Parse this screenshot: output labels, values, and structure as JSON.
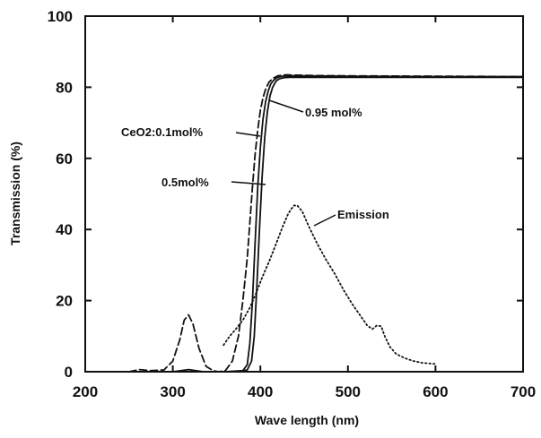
{
  "chart_data": {
    "type": "line",
    "title": "",
    "xlabel": "Wave length (nm)",
    "ylabel": "Transmission (%)",
    "xlim": [
      200,
      700
    ],
    "ylim": [
      0,
      100
    ],
    "xticks": [
      200,
      300,
      400,
      500,
      600,
      700
    ],
    "yticks": [
      0,
      20,
      40,
      60,
      80,
      100
    ],
    "grid": false,
    "series": [
      {
        "name": "CeO2:0.1mol%",
        "style": "dashed",
        "color": "#111111",
        "x": [
          250,
          262,
          275,
          290,
          300,
          308,
          313,
          318,
          323,
          330,
          338,
          346,
          352,
          360,
          368,
          375,
          380,
          385,
          388,
          391,
          394,
          397,
          400,
          403,
          406,
          410,
          415,
          420,
          425,
          430,
          440,
          460,
          500,
          600,
          700
        ],
        "y": [
          0,
          0.6,
          0.3,
          0.5,
          3,
          9,
          14.5,
          16,
          13.5,
          6.5,
          1.5,
          0.3,
          0,
          0.3,
          3,
          10,
          20,
          32,
          42,
          52,
          61,
          68,
          73.5,
          77,
          79.5,
          81.5,
          82.6,
          83.2,
          83.4,
          83.5,
          83.4,
          83.3,
          83.2,
          83.1,
          83.0
        ]
      },
      {
        "name": "0.5mol%",
        "style": "solid",
        "color": "#111111",
        "x": [
          250,
          300,
          318,
          335,
          360,
          380,
          385,
          388,
          391,
          394,
          397,
          400,
          403,
          406,
          409,
          412,
          416,
          420,
          425,
          430,
          440,
          500,
          600,
          700
        ],
        "y": [
          0,
          0,
          0.6,
          0,
          0,
          0.3,
          2,
          8,
          20,
          36,
          52,
          63,
          71,
          76,
          79,
          81,
          82.2,
          82.8,
          83.1,
          83.2,
          83.2,
          83.1,
          83.0,
          83.0
        ]
      },
      {
        "name": "0.95mol%",
        "style": "solid",
        "color": "#111111",
        "x": [
          250,
          300,
          340,
          375,
          385,
          390,
          393,
          396,
          399,
          402,
          405,
          408,
          411,
          414,
          418,
          422,
          427,
          433,
          440,
          500,
          600,
          700
        ],
        "y": [
          0,
          0,
          0,
          0,
          0.5,
          3,
          10,
          24,
          40,
          55,
          66,
          73,
          77.5,
          80,
          81.8,
          82.4,
          82.7,
          82.8,
          82.8,
          82.8,
          82.8,
          82.8
        ]
      },
      {
        "name": "Emission",
        "style": "dotted",
        "color": "#111111",
        "x": [
          358,
          365,
          372,
          380,
          388,
          395,
          402,
          410,
          418,
          425,
          432,
          438,
          442,
          448,
          455,
          465,
          475,
          485,
          495,
          505,
          515,
          522,
          528,
          533,
          538,
          542,
          548,
          555,
          565,
          575,
          585,
          600
        ],
        "y": [
          7.5,
          10,
          12,
          14.5,
          18,
          22,
          26.5,
          31,
          36,
          40.5,
          44.5,
          46.7,
          46.8,
          45,
          41,
          36,
          31.5,
          27.5,
          23,
          19,
          15.5,
          13,
          12,
          13,
          12.8,
          10,
          7,
          5,
          3.8,
          3,
          2.5,
          2.2
        ]
      }
    ],
    "annotations": [
      {
        "id": "ceo2",
        "text": "CeO2:0.1mol%"
      },
      {
        "id": "mol05",
        "text": "0.5mol%"
      },
      {
        "id": "mol095",
        "text": "0.95 mol%"
      },
      {
        "id": "emission",
        "text": "Emission"
      }
    ]
  }
}
